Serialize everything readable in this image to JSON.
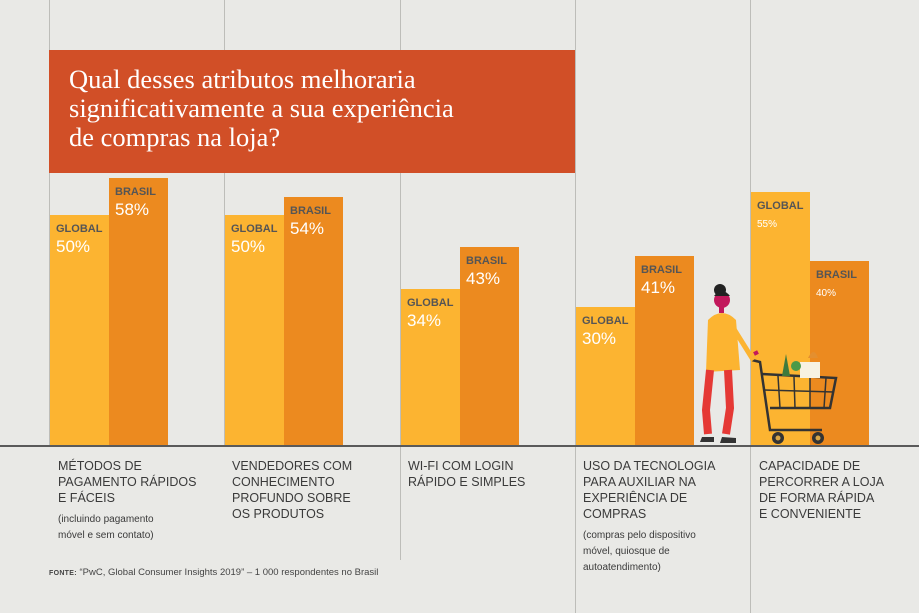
{
  "title": "Qual desses atributos melhoraria\nsignificativamente a sua experiência\nde compras na loja?",
  "colors": {
    "global": "#fcb431",
    "brasil": "#ec8a1f",
    "title_bg": "#d14f27",
    "background": "#e9e9e6"
  },
  "chart_data": {
    "type": "bar",
    "title": "Qual desses atributos melhoraria significativamente a sua experiência de compras na loja?",
    "categories": [
      "MÉTODOS DE PAGAMENTO RÁPIDOS E FÁCEIS",
      "VENDEDORES COM CONHECIMENTO PROFUNDO SOBRE OS PRODUTOS",
      "WI-FI COM LOGIN RÁPIDO E SIMPLES",
      "USO DA TECNOLOGIA PARA AUXILIAR NA EXPERIÊNCIA DE COMPRAS",
      "CAPACIDADE DE PERCORRER A LOJA DE FORMA RÁPIDA E CONVENIENTE"
    ],
    "series": [
      {
        "name": "GLOBAL",
        "values": [
          50,
          50,
          34,
          30,
          55
        ],
        "labels": [
          "50%",
          "50%",
          "34%",
          "30%",
          "55%"
        ]
      },
      {
        "name": "BRASIL",
        "values": [
          58,
          54,
          43,
          41,
          40
        ],
        "labels": [
          "58%",
          "54%",
          "43%",
          "41%",
          "40%"
        ]
      }
    ],
    "ylim": [
      0,
      65
    ]
  },
  "categories": [
    {
      "label": "MÉTODOS DE\nPAGAMENTO RÁPIDOS\nE FÁCEIS",
      "note": "(incluindo pagamento\nmóvel e sem contato)"
    },
    {
      "label": "VENDEDORES COM\nCONHECIMENTO\nPROFUNDO SOBRE\nOS PRODUTOS",
      "note": ""
    },
    {
      "label": "WI-FI COM LOGIN\nRÁPIDO E SIMPLES",
      "note": ""
    },
    {
      "label": "USO DA TECNOLOGIA\nPARA AUXILIAR NA\nEXPERIÊNCIA DE\nCOMPRAS",
      "note": "(compras pelo dispositivo\nmóvel, quiosque de\nautoatendimento)"
    },
    {
      "label": "CAPACIDADE DE\nPERCORRER A LOJA\nDE FORMA RÁPIDA\nE CONVENIENTE",
      "note": ""
    }
  ],
  "source": {
    "prefix": "FONTE:",
    "text": " “PwC, Global Consumer Insights 2019” – 1 000 respondentes no Brasil"
  }
}
